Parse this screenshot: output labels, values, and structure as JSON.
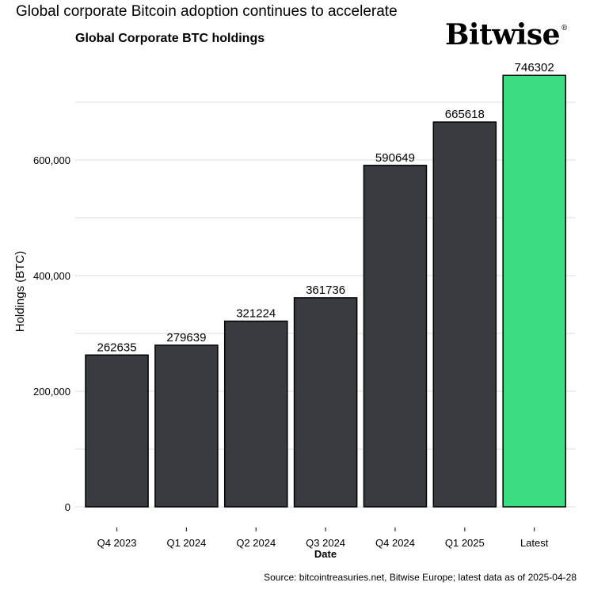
{
  "suptitle": "Global corporate Bitcoin adoption continues to accelerate",
  "logo": {
    "text": "Bitwise",
    "mark": "®"
  },
  "source": "Source: bitcointreasuries.net, Bitwise Europe; latest data as of 2025-04-28",
  "colors": {
    "bar_default": "#383c40",
    "bar_highlight": "#3cdc82",
    "bar_outline": "#000000",
    "grid": "#dcdcdc"
  },
  "chart_data": {
    "type": "bar",
    "title": "Global Corporate BTC holdings",
    "xlabel": "Date",
    "ylabel": "Holdings (BTC)",
    "categories": [
      "Q4 2023",
      "Q1 2024",
      "Q2 2024",
      "Q3 2024",
      "Q4 2024",
      "Q1 2025",
      "Latest"
    ],
    "values": [
      262635,
      279639,
      321224,
      361736,
      590649,
      665618,
      746302
    ],
    "data_labels": [
      "262635",
      "279639",
      "321224",
      "361736",
      "590649",
      "665618",
      "746302"
    ],
    "highlight_category": "Latest",
    "ylim": [
      0,
      750000
    ],
    "yticks": [
      0,
      200000,
      400000,
      600000
    ],
    "ytick_labels": [
      "0",
      "200,000",
      "400,000",
      "600,000"
    ],
    "grid": true,
    "legend": "none"
  }
}
